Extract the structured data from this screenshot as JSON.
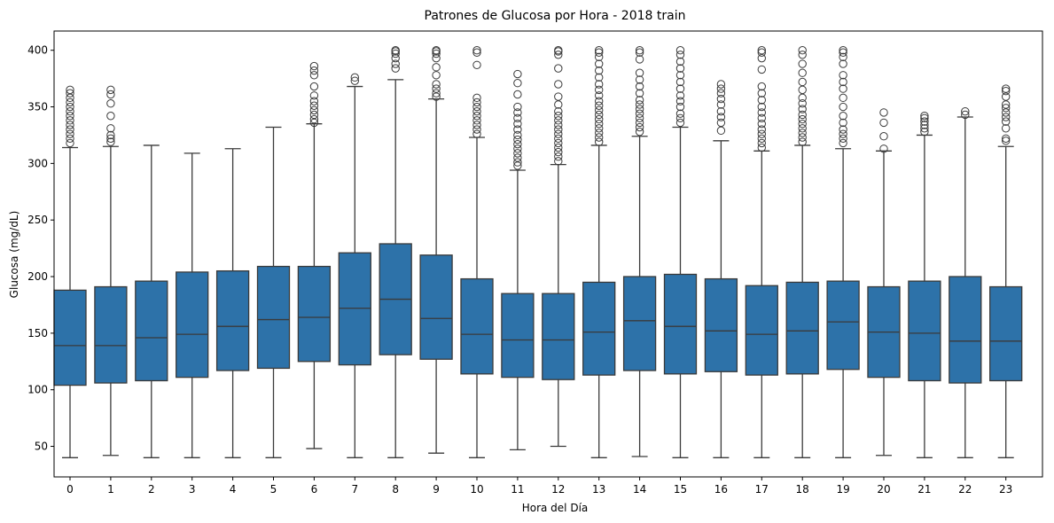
{
  "chart_data": {
    "type": "box",
    "title": "Patrones de Glucosa por Hora - 2018 train",
    "xlabel": "Hora del Día",
    "ylabel": "Glucosa (mg/dL)",
    "ylim": [
      23,
      417
    ],
    "yticks": [
      50,
      100,
      150,
      200,
      250,
      300,
      350,
      400
    ],
    "box_color": "#2d72a9",
    "line_color": "#3a3a3a",
    "boxes": [
      {
        "hour": "0",
        "whisker_low": 40,
        "q1": 104,
        "median": 139,
        "q3": 188,
        "whisker_high": 314,
        "outliers": [
          318,
          322,
          326,
          330,
          334,
          338,
          342,
          346,
          350,
          354,
          358,
          362,
          365
        ]
      },
      {
        "hour": "1",
        "whisker_low": 42,
        "q1": 106,
        "median": 139,
        "q3": 191,
        "whisker_high": 315,
        "outliers": [
          319,
          322,
          325,
          331,
          342,
          353,
          361,
          365
        ]
      },
      {
        "hour": "2",
        "whisker_low": 40,
        "q1": 108,
        "median": 146,
        "q3": 196,
        "whisker_high": 316,
        "outliers": []
      },
      {
        "hour": "3",
        "whisker_low": 40,
        "q1": 111,
        "median": 149,
        "q3": 204,
        "whisker_high": 309,
        "outliers": []
      },
      {
        "hour": "4",
        "whisker_low": 40,
        "q1": 117,
        "median": 156,
        "q3": 205,
        "whisker_high": 313,
        "outliers": []
      },
      {
        "hour": "5",
        "whisker_low": 40,
        "q1": 119,
        "median": 162,
        "q3": 209,
        "whisker_high": 332,
        "outliers": []
      },
      {
        "hour": "6",
        "whisker_low": 48,
        "q1": 125,
        "median": 164,
        "q3": 209,
        "whisker_high": 335,
        "outliers": [
          336,
          339,
          343,
          347,
          351,
          355,
          360,
          368,
          378,
          382,
          386
        ]
      },
      {
        "hour": "7",
        "whisker_low": 40,
        "q1": 122,
        "median": 172,
        "q3": 221,
        "whisker_high": 368,
        "outliers": [
          373,
          376
        ]
      },
      {
        "hour": "8",
        "whisker_low": 40,
        "q1": 131,
        "median": 180,
        "q3": 229,
        "whisker_high": 374,
        "outliers": [
          384,
          388,
          393,
          397,
          399,
          400
        ]
      },
      {
        "hour": "9",
        "whisker_low": 44,
        "q1": 127,
        "median": 163,
        "q3": 219,
        "whisker_high": 357,
        "outliers": [
          359,
          362,
          366,
          370,
          378,
          385,
          393,
          397,
          399,
          400
        ]
      },
      {
        "hour": "10",
        "whisker_low": 40,
        "q1": 114,
        "median": 149,
        "q3": 198,
        "whisker_high": 323,
        "outliers": [
          326,
          330,
          334,
          338,
          342,
          346,
          350,
          354,
          358,
          387,
          398,
          400
        ]
      },
      {
        "hour": "11",
        "whisker_low": 47,
        "q1": 111,
        "median": 144,
        "q3": 185,
        "whisker_high": 294,
        "outliers": [
          298,
          301,
          305,
          309,
          313,
          317,
          321,
          325,
          330,
          335,
          340,
          345,
          350,
          361,
          371,
          379
        ]
      },
      {
        "hour": "12",
        "whisker_low": 50,
        "q1": 109,
        "median": 144,
        "q3": 185,
        "whisker_high": 299,
        "outliers": [
          302,
          306,
          310,
          314,
          318,
          322,
          326,
          330,
          334,
          338,
          342,
          346,
          352,
          359,
          370,
          384,
          396,
          399,
          400
        ]
      },
      {
        "hour": "13",
        "whisker_low": 40,
        "q1": 113,
        "median": 151,
        "q3": 195,
        "whisker_high": 316,
        "outliers": [
          319,
          323,
          327,
          331,
          335,
          339,
          343,
          347,
          351,
          355,
          360,
          365,
          370,
          376,
          382,
          388,
          394,
          398,
          400
        ]
      },
      {
        "hour": "14",
        "whisker_low": 41,
        "q1": 117,
        "median": 161,
        "q3": 200,
        "whisker_high": 324,
        "outliers": [
          328,
          332,
          336,
          340,
          344,
          348,
          352,
          356,
          362,
          368,
          374,
          380,
          392,
          398,
          400
        ]
      },
      {
        "hour": "15",
        "whisker_low": 40,
        "q1": 114,
        "median": 156,
        "q3": 202,
        "whisker_high": 332,
        "outliers": [
          336,
          340,
          344,
          350,
          355,
          360,
          366,
          372,
          378,
          384,
          390,
          396,
          400
        ]
      },
      {
        "hour": "16",
        "whisker_low": 40,
        "q1": 116,
        "median": 152,
        "q3": 198,
        "whisker_high": 320,
        "outliers": [
          329,
          336,
          341,
          346,
          352,
          357,
          362,
          366,
          370
        ]
      },
      {
        "hour": "17",
        "whisker_low": 40,
        "q1": 113,
        "median": 149,
        "q3": 192,
        "whisker_high": 311,
        "outliers": [
          314,
          318,
          322,
          326,
          330,
          335,
          340,
          345,
          350,
          356,
          362,
          368,
          383,
          393,
          398,
          400
        ]
      },
      {
        "hour": "18",
        "whisker_low": 40,
        "q1": 114,
        "median": 152,
        "q3": 195,
        "whisker_high": 316,
        "outliers": [
          319,
          323,
          327,
          331,
          335,
          339,
          343,
          348,
          353,
          358,
          365,
          372,
          380,
          388,
          396,
          400
        ]
      },
      {
        "hour": "19",
        "whisker_low": 40,
        "q1": 118,
        "median": 160,
        "q3": 196,
        "whisker_high": 313,
        "outliers": [
          318,
          322,
          326,
          330,
          336,
          342,
          350,
          358,
          366,
          372,
          378,
          388,
          394,
          398,
          400
        ]
      },
      {
        "hour": "20",
        "whisker_low": 42,
        "q1": 111,
        "median": 151,
        "q3": 191,
        "whisker_high": 311,
        "outliers": [
          313,
          324,
          336,
          345
        ]
      },
      {
        "hour": "21",
        "whisker_low": 40,
        "q1": 108,
        "median": 150,
        "q3": 196,
        "whisker_high": 325,
        "outliers": [
          328,
          331,
          334,
          337,
          340,
          342
        ]
      },
      {
        "hour": "22",
        "whisker_low": 40,
        "q1": 106,
        "median": 143,
        "q3": 200,
        "whisker_high": 341,
        "outliers": [
          343,
          346
        ]
      },
      {
        "hour": "23",
        "whisker_low": 40,
        "q1": 108,
        "median": 143,
        "q3": 191,
        "whisker_high": 315,
        "outliers": [
          320,
          322,
          331,
          337,
          341,
          345,
          349,
          352,
          359,
          364,
          366
        ]
      }
    ]
  }
}
